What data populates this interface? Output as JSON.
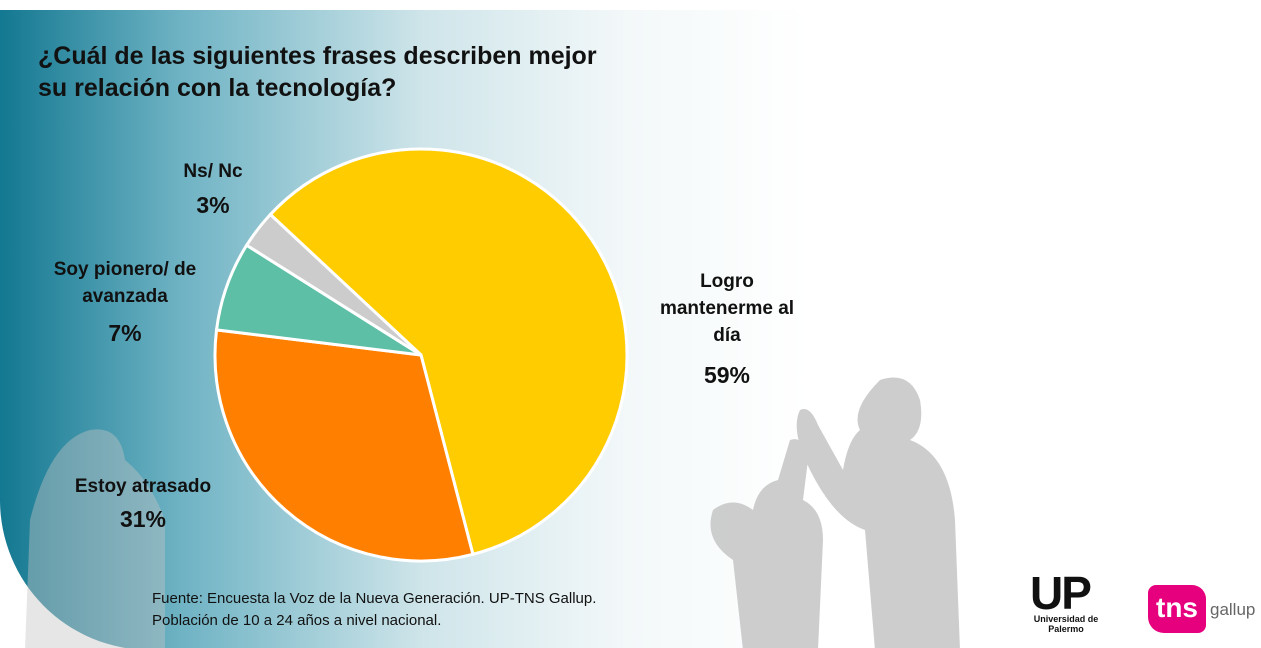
{
  "chart_data": {
    "type": "pie",
    "title": "¿Cuál de las siguientes frases describen mejor su relación con la tecnología?",
    "categories": [
      "Logro mantenerme al día",
      "Estoy atrasado",
      "Soy pionero/ de avanzada",
      "Ns/ Nc"
    ],
    "values": [
      59,
      31,
      7,
      3
    ],
    "value_labels": [
      "59%",
      "31%",
      "7%",
      "3%"
    ],
    "colors": [
      "#ffcc00",
      "#ff8000",
      "#5cbfa6",
      "#cccccc"
    ]
  },
  "footer": {
    "source": [
      "Fuente: Encuesta la Voz de la Nueva Generación. UP-TNS Gallup.",
      "Población de 10 a 24 años a nivel nacional."
    ]
  },
  "logos": {
    "up": "UP",
    "up_sub": "Universidad de Palermo",
    "tns": "tns",
    "gallup": "gallup"
  }
}
